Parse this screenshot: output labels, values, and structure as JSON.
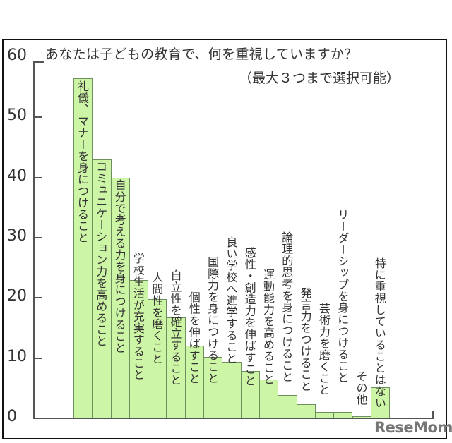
{
  "chart_data": {
    "type": "bar",
    "title": "あなたは子どもの教育で、何を重視していますか？",
    "subtitle": "（最大３つまで選択可能）",
    "xlabel": "",
    "ylabel": "",
    "ylim": [
      0,
      60
    ],
    "yticks": [
      0,
      10,
      20,
      30,
      40,
      50,
      60
    ],
    "grid": false,
    "legend": null,
    "categories": [
      "礼儀、マナーを身につけること",
      "コミュニケーション力を高めること",
      "自分で考える力を身につけること",
      "学校生活が充実すること",
      "人間性を磨くこと",
      "自立性を確立すること",
      "個性を伸ばすこと",
      "国際力を身につけること",
      "良い学校へ進学すること",
      "感性・創造力を伸ばすこと",
      "運動能力を高めること",
      "論理的思考を身につけること",
      "発言力をつけること",
      "芸術力を磨くこと",
      "リーダーシップを身につけること",
      "その他",
      "特に重視していることはない"
    ],
    "values": [
      56.5,
      43.0,
      40.0,
      23.0,
      19.8,
      16.7,
      12.1,
      10.2,
      9.4,
      7.8,
      6.4,
      3.9,
      2.4,
      1.0,
      1.0,
      0.3,
      5.2
    ]
  },
  "colors": {
    "bar_fill": "#cdf5a6",
    "bar_border": "#6f8f60",
    "axis": "#555555",
    "text": "#333333",
    "frame": "#111111"
  },
  "watermark": "ReseMom"
}
